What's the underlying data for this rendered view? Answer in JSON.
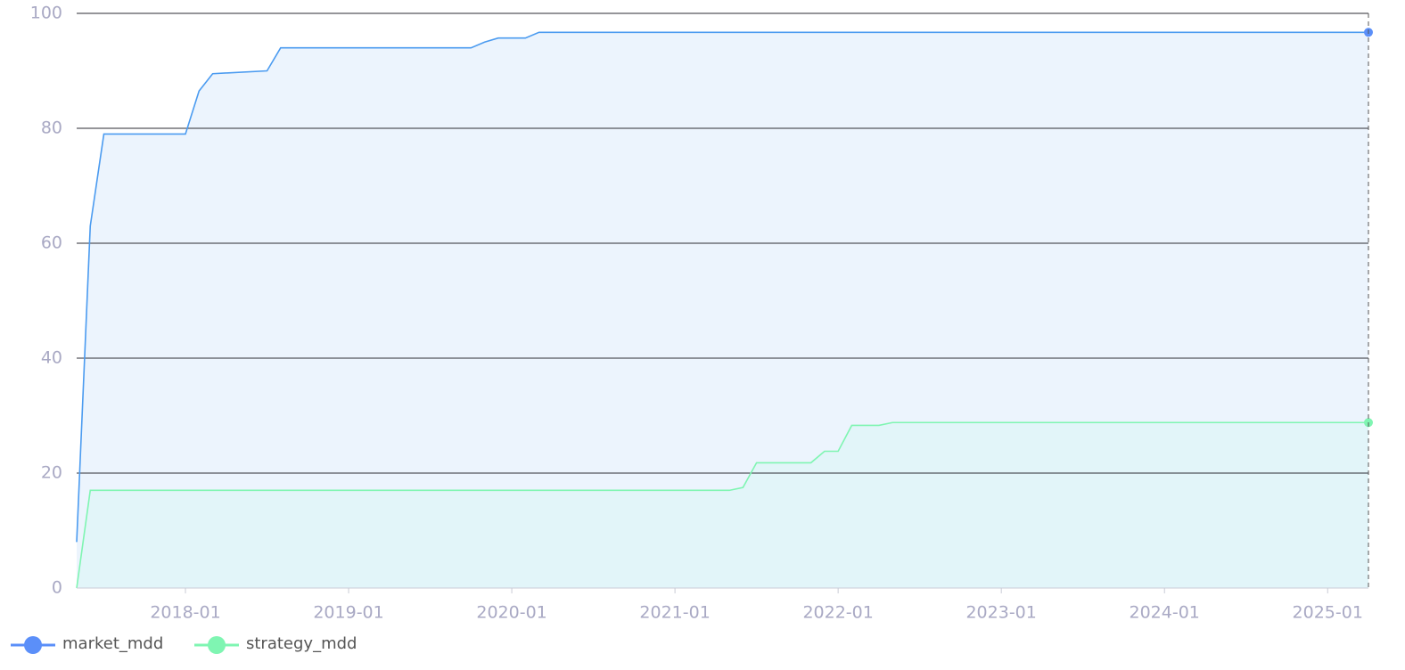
{
  "chart_data": {
    "type": "line",
    "series": [
      {
        "name": "market_mdd",
        "color": "#4b9bf0",
        "marker_color": "#5b8ff9",
        "area_color": "#e9f2fd",
        "x": [
          "2017-05",
          "2017-06",
          "2017-07",
          "2018-01",
          "2018-02",
          "2018-03",
          "2018-07",
          "2018-08",
          "2019-10",
          "2019-11",
          "2019-12",
          "2020-02",
          "2020-03",
          "2025-04"
        ],
        "values": [
          8,
          63,
          79,
          79,
          86.5,
          89.5,
          90,
          94,
          94,
          95,
          95.7,
          95.7,
          96.7,
          96.7
        ]
      },
      {
        "name": "strategy_mdd",
        "color": "#7ff5b2",
        "marker_color": "#7ff5b2",
        "area_color": "#e1f5f8",
        "x": [
          "2017-05",
          "2017-06",
          "2021-05",
          "2021-06",
          "2021-07",
          "2021-11",
          "2021-12",
          "2022-01",
          "2022-02",
          "2022-04",
          "2022-05",
          "2025-04"
        ],
        "values": [
          0,
          17,
          17,
          17.5,
          21.8,
          21.8,
          23.8,
          23.8,
          28.3,
          28.3,
          28.8,
          28.8
        ]
      }
    ],
    "xlim": [
      "2017-05",
      "2025-04"
    ],
    "xticks": [
      "2018-01",
      "2019-01",
      "2020-01",
      "2021-01",
      "2022-01",
      "2023-01",
      "2024-01",
      "2025-01"
    ],
    "ylim": [
      0,
      100
    ],
    "yticks": [
      0,
      20,
      40,
      60,
      80,
      100
    ],
    "grid": true,
    "legend": "bottom-left"
  }
}
